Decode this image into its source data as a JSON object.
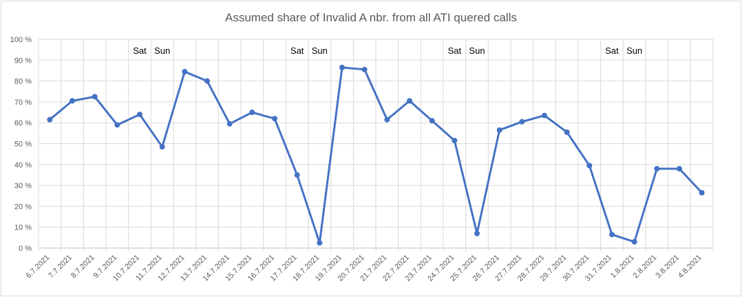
{
  "chart_data": {
    "type": "line",
    "title": "Assumed share of Invalid A nbr. from all ATI quered calls",
    "xlabel": "",
    "ylabel": "",
    "ylim": [
      0,
      100
    ],
    "yticks": [
      "0 %",
      "10 %",
      "20 %",
      "30 %",
      "40 %",
      "50 %",
      "60 %",
      "70 %",
      "80 %",
      "90 %",
      "100 %"
    ],
    "grid": true,
    "legend": "none",
    "line_color": "#4472c4",
    "categories": [
      "6.7.2021",
      "7.7.2021",
      "8.7.2021",
      "9.7.2021",
      "10.7.2021",
      "11.7.2021",
      "12.7.2021",
      "13.7.2021",
      "14.7.2021",
      "15.7.2021",
      "16.7.2021",
      "17.7.2021",
      "18.7.2021",
      "19.7.2021",
      "20.7.2021",
      "21.7.2021",
      "22.7.2021",
      "23.7.2021",
      "24.7.2021",
      "25.7.2021",
      "26.7.2021",
      "27.7.2021",
      "28.7.2021",
      "29.7.2021",
      "30.7.2021",
      "31.7.2021",
      "1.8.2021",
      "2.8.2021",
      "3.8.2021",
      "4.8.2021"
    ],
    "values": [
      61.5,
      70.5,
      72.5,
      59,
      64,
      48.5,
      84.5,
      80,
      59.5,
      65,
      62,
      35,
      2.5,
      86.5,
      85.5,
      61.5,
      70.5,
      61,
      51.5,
      7,
      56.5,
      60.5,
      63.5,
      55.5,
      39.5,
      6.5,
      3,
      38,
      38,
      26.5
    ],
    "annotations": [
      {
        "text": "Sat",
        "category": "10.7.2021"
      },
      {
        "text": "Sun",
        "category": "11.7.2021"
      },
      {
        "text": "Sat",
        "category": "17.7.2021"
      },
      {
        "text": "Sun",
        "category": "18.7.2021"
      },
      {
        "text": "Sat",
        "category": "24.7.2021"
      },
      {
        "text": "Sun",
        "category": "25.7.2021"
      },
      {
        "text": "Sat",
        "category": "31.7.2021"
      },
      {
        "text": "Sun",
        "category": "1.8.2021"
      }
    ]
  }
}
